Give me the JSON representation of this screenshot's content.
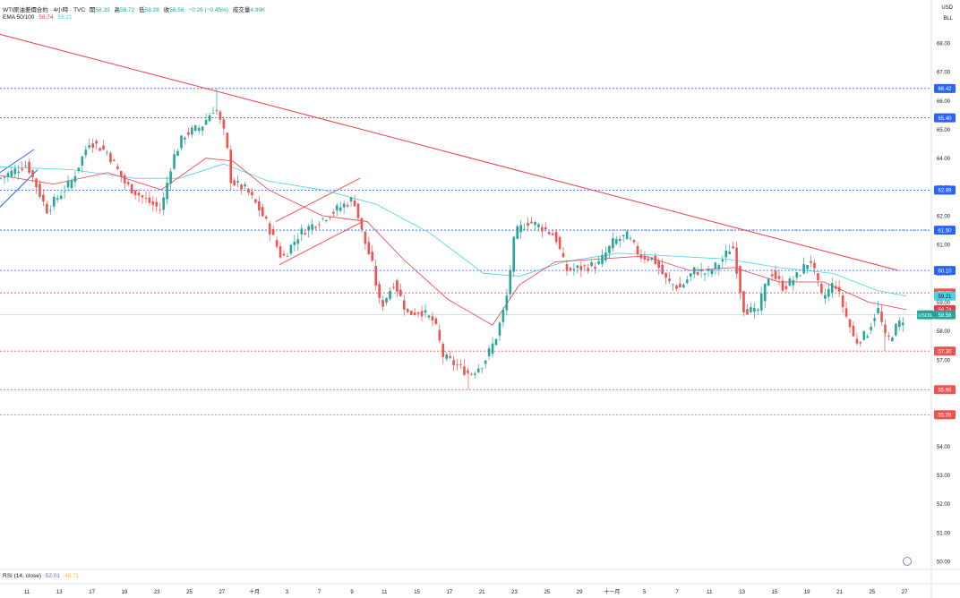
{
  "header": {
    "symbol": "WTI原油差價合約 · 4小時 · TVC",
    "open_label": "開",
    "open": "58.33",
    "high_label": "高",
    "high": "58.72",
    "low_label": "低",
    "low": "58.28",
    "close_label": "收",
    "close": "58.56",
    "change": "−0.26 (−0.45%)",
    "volume_label": "成交量",
    "volume": "4.99K",
    "ema_label": "EMA 50/100",
    "ema50": "58.74",
    "ema100": "59.21"
  },
  "currency": "USD",
  "unit": "BLL",
  "rsi": {
    "label": "RSI (14, close)",
    "value1": "52.01",
    "value2": "46.71"
  },
  "colors": {
    "up": "#26a69a",
    "down": "#ef5350",
    "ema50": "#f23645",
    "ema100": "#4dd0e1",
    "trendline": "#f23645",
    "blue": "#2962ff"
  },
  "chart_data": {
    "type": "candlestick",
    "ylim": [
      50.0,
      69.5
    ],
    "y_ticks": [
      "50.00",
      "51.00",
      "52.00",
      "53.00",
      "54.00",
      "55.00",
      "56.00",
      "57.00",
      "58.00",
      "59.00",
      "60.00",
      "61.00",
      "62.00",
      "63.00",
      "64.00",
      "65.00",
      "66.00",
      "67.00",
      "68.00"
    ],
    "x_ticks": [
      "11",
      "13",
      "17",
      "19",
      "23",
      "25",
      "27",
      "十月",
      "3",
      "7",
      "9",
      "11",
      "15",
      "17",
      "21",
      "23",
      "25",
      "29",
      "十一月",
      "5",
      "7",
      "11",
      "13",
      "15",
      "19",
      "21",
      "25",
      "27"
    ],
    "price_lines": [
      {
        "value": 66.42,
        "label": "66.42",
        "color": "blue"
      },
      {
        "value": 65.4,
        "label": "65.40",
        "color": "blue"
      },
      {
        "value": 62.89,
        "label": "62.89",
        "color": "blue"
      },
      {
        "value": 61.5,
        "label": "61.50",
        "color": "blue"
      },
      {
        "value": 60.1,
        "label": "60.10",
        "color": "blue"
      },
      {
        "value": 59.32,
        "label": "59.32",
        "color": "red"
      },
      {
        "value": 57.3,
        "label": "57.30",
        "color": "red"
      },
      {
        "value": 55.96,
        "label": "55.96",
        "color": "red"
      },
      {
        "value": 55.09,
        "label": "55.09",
        "color": "red"
      }
    ],
    "ema100_label": "59.21",
    "ema50_label": "58.74",
    "last": {
      "symbol": "USOIL",
      "value": "58.56"
    },
    "anchors": [
      {
        "x": 0,
        "y": 63.3
      },
      {
        "x": 30,
        "y": 63.8
      },
      {
        "x": 52,
        "y": 62.2
      },
      {
        "x": 80,
        "y": 63.2
      },
      {
        "x": 100,
        "y": 64.6
      },
      {
        "x": 120,
        "y": 64.2
      },
      {
        "x": 140,
        "y": 63.1
      },
      {
        "x": 160,
        "y": 62.6
      },
      {
        "x": 180,
        "y": 62.2
      },
      {
        "x": 192,
        "y": 63.9
      },
      {
        "x": 205,
        "y": 64.8
      },
      {
        "x": 225,
        "y": 65.1
      },
      {
        "x": 240,
        "y": 65.8
      },
      {
        "x": 252,
        "y": 64.7
      },
      {
        "x": 258,
        "y": 63.2
      },
      {
        "x": 275,
        "y": 62.9
      },
      {
        "x": 290,
        "y": 62.2
      },
      {
        "x": 300,
        "y": 61.6
      },
      {
        "x": 315,
        "y": 60.5
      },
      {
        "x": 335,
        "y": 61.4
      },
      {
        "x": 355,
        "y": 61.8
      },
      {
        "x": 375,
        "y": 62.2
      },
      {
        "x": 395,
        "y": 62.6
      },
      {
        "x": 405,
        "y": 61.3
      },
      {
        "x": 415,
        "y": 60.4
      },
      {
        "x": 425,
        "y": 58.8
      },
      {
        "x": 440,
        "y": 59.7
      },
      {
        "x": 455,
        "y": 58.6
      },
      {
        "x": 470,
        "y": 58.7
      },
      {
        "x": 485,
        "y": 58.3
      },
      {
        "x": 495,
        "y": 57.1
      },
      {
        "x": 510,
        "y": 56.8
      },
      {
        "x": 525,
        "y": 56.5
      },
      {
        "x": 540,
        "y": 56.9
      },
      {
        "x": 553,
        "y": 57.7
      },
      {
        "x": 565,
        "y": 59.0
      },
      {
        "x": 575,
        "y": 61.4
      },
      {
        "x": 590,
        "y": 61.8
      },
      {
        "x": 605,
        "y": 61.6
      },
      {
        "x": 620,
        "y": 61.3
      },
      {
        "x": 632,
        "y": 60.1
      },
      {
        "x": 650,
        "y": 60.2
      },
      {
        "x": 668,
        "y": 60.3
      },
      {
        "x": 685,
        "y": 61.1
      },
      {
        "x": 700,
        "y": 61.3
      },
      {
        "x": 715,
        "y": 60.6
      },
      {
        "x": 730,
        "y": 60.5
      },
      {
        "x": 745,
        "y": 59.7
      },
      {
        "x": 760,
        "y": 59.5
      },
      {
        "x": 775,
        "y": 60.1
      },
      {
        "x": 790,
        "y": 60.0
      },
      {
        "x": 805,
        "y": 60.4
      },
      {
        "x": 818,
        "y": 61.0
      },
      {
        "x": 830,
        "y": 58.8
      },
      {
        "x": 845,
        "y": 58.6
      },
      {
        "x": 860,
        "y": 60.1
      },
      {
        "x": 875,
        "y": 59.5
      },
      {
        "x": 890,
        "y": 59.9
      },
      {
        "x": 905,
        "y": 60.5
      },
      {
        "x": 918,
        "y": 59.1
      },
      {
        "x": 932,
        "y": 59.7
      },
      {
        "x": 945,
        "y": 58.5
      },
      {
        "x": 955,
        "y": 57.6
      },
      {
        "x": 968,
        "y": 57.9
      },
      {
        "x": 980,
        "y": 58.8
      },
      {
        "x": 990,
        "y": 57.6
      },
      {
        "x": 1000,
        "y": 58.1
      },
      {
        "x": 1012,
        "y": 58.56
      }
    ],
    "lows": [
      {
        "x": 523,
        "y": 55.96
      },
      {
        "x": 988,
        "y": 57.3
      }
    ],
    "trendline": [
      {
        "x": 0,
        "y": 68.3
      },
      {
        "x": 1003,
        "y": 60.1
      }
    ],
    "ema50": [
      {
        "x": 0,
        "y": 63.4
      },
      {
        "x": 60,
        "y": 63.1
      },
      {
        "x": 120,
        "y": 63.5
      },
      {
        "x": 180,
        "y": 62.9
      },
      {
        "x": 230,
        "y": 64.0
      },
      {
        "x": 260,
        "y": 63.9
      },
      {
        "x": 300,
        "y": 62.9
      },
      {
        "x": 360,
        "y": 62.0
      },
      {
        "x": 410,
        "y": 61.8
      },
      {
        "x": 450,
        "y": 60.5
      },
      {
        "x": 500,
        "y": 59.1
      },
      {
        "x": 550,
        "y": 58.2
      },
      {
        "x": 580,
        "y": 59.6
      },
      {
        "x": 620,
        "y": 60.4
      },
      {
        "x": 670,
        "y": 60.5
      },
      {
        "x": 720,
        "y": 60.6
      },
      {
        "x": 770,
        "y": 60.1
      },
      {
        "x": 820,
        "y": 60.2
      },
      {
        "x": 870,
        "y": 59.7
      },
      {
        "x": 920,
        "y": 59.7
      },
      {
        "x": 970,
        "y": 59.0
      },
      {
        "x": 1012,
        "y": 58.74
      }
    ],
    "ema100": [
      {
        "x": 0,
        "y": 63.7
      },
      {
        "x": 80,
        "y": 63.6
      },
      {
        "x": 150,
        "y": 63.3
      },
      {
        "x": 200,
        "y": 63.3
      },
      {
        "x": 250,
        "y": 63.8
      },
      {
        "x": 300,
        "y": 63.2
      },
      {
        "x": 360,
        "y": 62.9
      },
      {
        "x": 420,
        "y": 62.4
      },
      {
        "x": 480,
        "y": 61.4
      },
      {
        "x": 540,
        "y": 60.0
      },
      {
        "x": 580,
        "y": 59.9
      },
      {
        "x": 630,
        "y": 60.4
      },
      {
        "x": 690,
        "y": 60.7
      },
      {
        "x": 750,
        "y": 60.6
      },
      {
        "x": 810,
        "y": 60.5
      },
      {
        "x": 870,
        "y": 60.2
      },
      {
        "x": 930,
        "y": 60.0
      },
      {
        "x": 980,
        "y": 59.4
      },
      {
        "x": 1012,
        "y": 59.21
      }
    ],
    "channels": [
      {
        "color": "blue",
        "upper": [
          {
            "x": 0,
            "y": 63.5
          },
          {
            "x": 38,
            "y": 64.3
          }
        ],
        "lower": [
          {
            "x": 0,
            "y": 62.3
          },
          {
            "x": 42,
            "y": 63.6
          }
        ]
      },
      {
        "color": "red",
        "upper": [
          {
            "x": 308,
            "y": 61.8
          },
          {
            "x": 402,
            "y": 63.3
          }
        ],
        "lower": [
          {
            "x": 312,
            "y": 60.3
          },
          {
            "x": 405,
            "y": 61.8
          }
        ]
      }
    ],
    "dotted_segment": {
      "y": 61.5,
      "x_from": 680,
      "x_to": 1040
    }
  }
}
